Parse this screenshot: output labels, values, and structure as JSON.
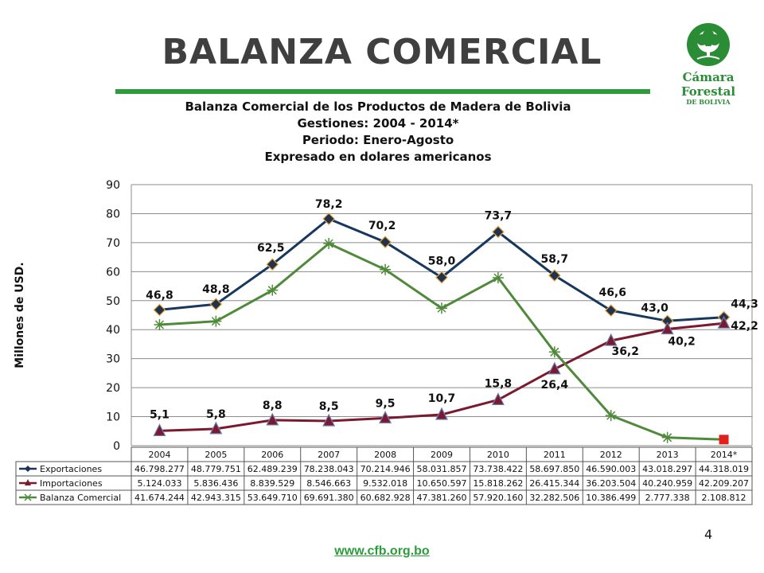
{
  "slide": {
    "title": "BALANZA COMERCIAL",
    "page_number": "4",
    "url": "www.cfb.org.bo",
    "logo_name": "Cámara Forestal",
    "logo_sub": "DE BOLIVIA",
    "accent_color": "#2e9c3a"
  },
  "chart_data": {
    "type": "line",
    "title_lines": [
      "Balanza Comercial de los Productos de Madera de Bolivia",
      "Gestiones: 2004 - 2014*",
      "Periodo: Enero-Agosto",
      "Expresado en dolares americanos"
    ],
    "xlabel": "",
    "ylabel": "Millones de USD.",
    "ylim": [
      0,
      90
    ],
    "yticks": [
      0,
      10,
      20,
      30,
      40,
      50,
      60,
      70,
      80,
      90
    ],
    "grid": true,
    "legend": "data-table",
    "categories": [
      "2004",
      "2005",
      "2006",
      "2007",
      "2008",
      "2009",
      "2010",
      "2011",
      "2012",
      "2013",
      "2014*"
    ],
    "series": [
      {
        "name": "Exportaciones",
        "color": "#17375e",
        "marker": "diamond",
        "values": [
          46.8,
          48.8,
          62.5,
          78.2,
          70.2,
          58.0,
          73.7,
          58.7,
          46.6,
          43.0,
          44.3
        ],
        "data_labels": [
          "46,8",
          "48,8",
          "62,5",
          "78,2",
          "70,2",
          "58,0",
          "73,7",
          "58,7",
          "46,6",
          "43,0",
          "44,3"
        ],
        "table_values": [
          "46.798.277",
          "48.779.751",
          "62.489.239",
          "78.238.043",
          "70.214.946",
          "58.031.857",
          "73.738.422",
          "58.697.850",
          "46.590.003",
          "43.018.297",
          "44.318.019"
        ]
      },
      {
        "name": "Importaciones",
        "color": "#7b1a2e",
        "marker": "triangle",
        "values": [
          5.1,
          5.8,
          8.8,
          8.5,
          9.5,
          10.7,
          15.8,
          26.4,
          36.2,
          40.2,
          42.2
        ],
        "data_labels": [
          "5,1",
          "5,8",
          "8,8",
          "8,5",
          "9,5",
          "10,7",
          "15,8",
          "26,4",
          "36,2",
          "40,2",
          "42,2"
        ],
        "table_values": [
          "5.124.033",
          "5.836.436",
          "8.839.529",
          "8.546.663",
          "9.532.018",
          "10.650.597",
          "15.818.262",
          "26.415.344",
          "36.203.504",
          "40.240.959",
          "42.209.207"
        ]
      },
      {
        "name": "Balanza Comercial",
        "color": "#4f8a3a",
        "marker": "star",
        "values": [
          41.7,
          42.9,
          53.6,
          69.7,
          60.7,
          47.4,
          57.9,
          32.3,
          10.4,
          2.8,
          2.1
        ],
        "table_values": [
          "41.674.244",
          "42.943.315",
          "53.649.710",
          "69.691.380",
          "60.682.928",
          "47.381.260",
          "57.920.160",
          "32.282.506",
          "10.386.499",
          "2.777.338",
          "2.108.812"
        ],
        "last_point_color": "#e0201b"
      }
    ]
  }
}
